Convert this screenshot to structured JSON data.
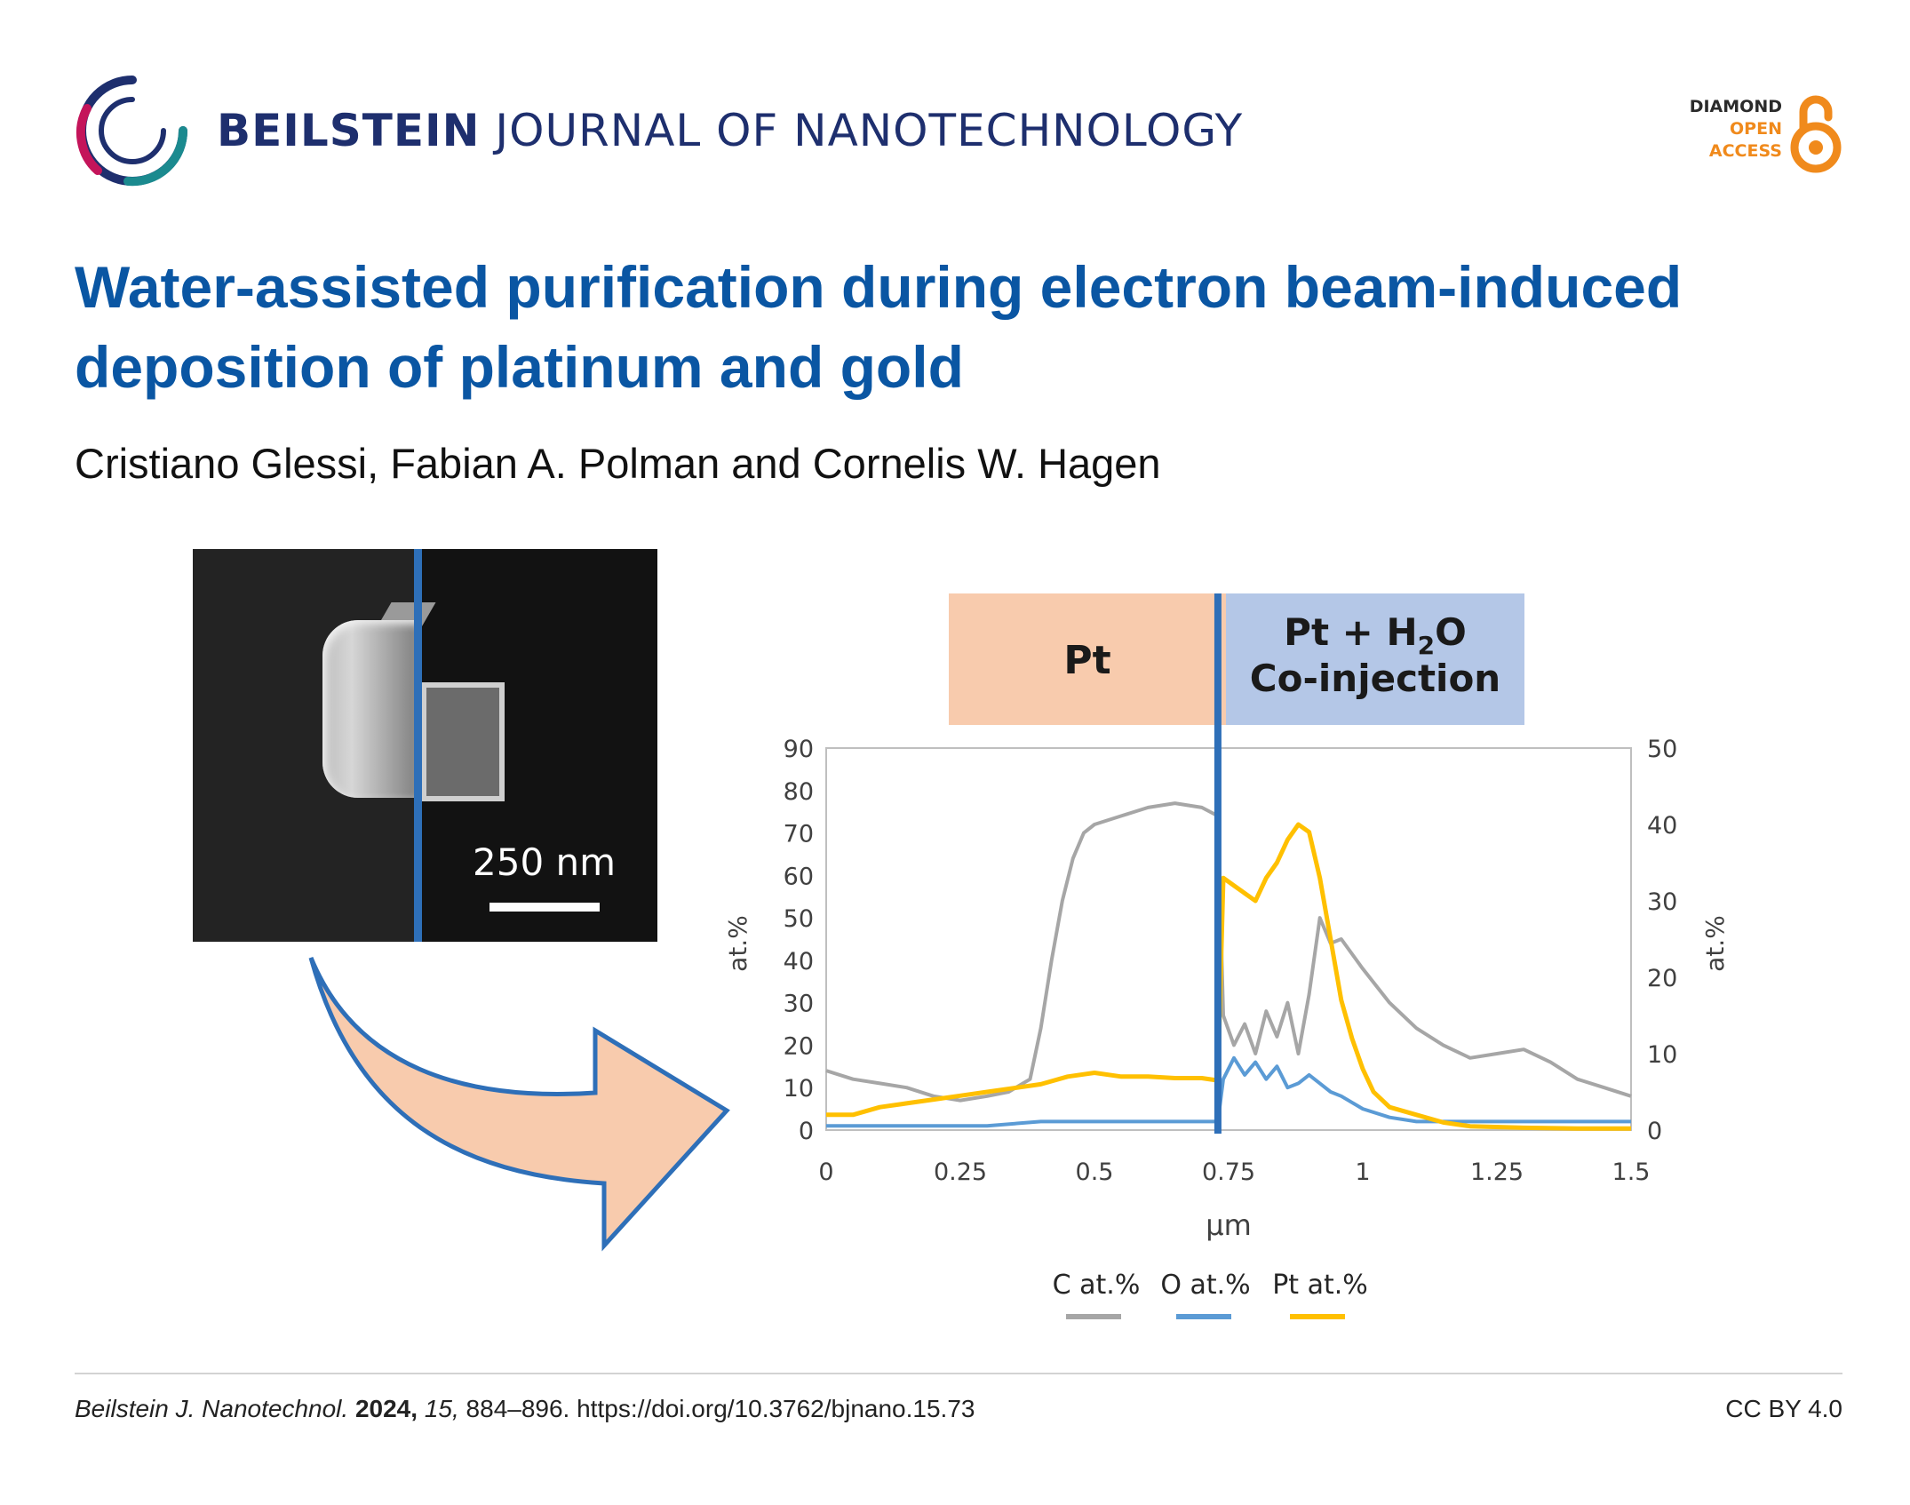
{
  "header": {
    "journal_bold": "BEILSTEIN",
    "journal_rest": "JOURNAL OF NANOTECHNOLOGY",
    "oa_line1": "DIAMOND",
    "oa_line2": "OPEN",
    "oa_line3": "ACCESS"
  },
  "article": {
    "title": "Water-assisted purification during electron beam-induced deposition of platinum and gold",
    "authors": "Cristiano Glessi, Fabian A. Polman and Cornelis W. Hagen"
  },
  "figure": {
    "scale_bar_label": "250 nm"
  },
  "colors": {
    "title": "#0a56a3",
    "journal": "#1e2f6e",
    "oa_orange": "#f08a1c",
    "series_C": "#a6a6a6",
    "series_O": "#5b9bd5",
    "series_Pt": "#ffc000",
    "region_pt": "#f8cbad",
    "region_h2o": "#b4c7e7",
    "divider_blue": "#2e6fb8"
  },
  "chart_data": {
    "type": "line",
    "regions": [
      {
        "label": "Pt",
        "x_range": [
          0,
          0.73
        ]
      },
      {
        "label_line1": "Pt + H",
        "label_sub": "2",
        "label_line1_end": "O",
        "label_line2": "Co-injection",
        "x_range": [
          0.73,
          1.5
        ]
      }
    ],
    "divider_x": 0.73,
    "xlabel": "μm",
    "ylabel_left": "at.%",
    "ylabel_right": "at.%",
    "xlim": [
      0,
      1.5
    ],
    "ylim_left": [
      0,
      90
    ],
    "ylim_right": [
      0,
      50
    ],
    "x_ticks": [
      "0",
      "0.25",
      "0.5",
      "0.75",
      "1",
      "1.25",
      "1.5"
    ],
    "y_ticks_left": [
      "0",
      "10",
      "20",
      "30",
      "40",
      "50",
      "60",
      "70",
      "80",
      "90"
    ],
    "y_ticks_right": [
      "0",
      "10",
      "20",
      "30",
      "40",
      "50"
    ],
    "legend": [
      "C at.%",
      "O at.%",
      "Pt at.%"
    ],
    "series": [
      {
        "name": "C at.%",
        "axis": "left",
        "x": [
          0,
          0.05,
          0.1,
          0.15,
          0.2,
          0.25,
          0.3,
          0.34,
          0.38,
          0.4,
          0.42,
          0.44,
          0.46,
          0.48,
          0.5,
          0.55,
          0.6,
          0.65,
          0.7,
          0.73,
          0.74,
          0.76,
          0.78,
          0.8,
          0.82,
          0.84,
          0.86,
          0.88,
          0.9,
          0.92,
          0.94,
          0.96,
          1.0,
          1.05,
          1.1,
          1.15,
          1.2,
          1.25,
          1.3,
          1.35,
          1.4,
          1.45,
          1.5
        ],
        "y": [
          14,
          12,
          11,
          10,
          8,
          7,
          8,
          9,
          12,
          24,
          40,
          54,
          64,
          70,
          72,
          74,
          76,
          77,
          76,
          74,
          27,
          20,
          25,
          18,
          28,
          22,
          30,
          18,
          32,
          50,
          44,
          45,
          38,
          30,
          24,
          20,
          17,
          18,
          19,
          16,
          12,
          10,
          8
        ]
      },
      {
        "name": "O at.%",
        "axis": "left",
        "x": [
          0,
          0.1,
          0.2,
          0.3,
          0.4,
          0.5,
          0.6,
          0.7,
          0.73,
          0.74,
          0.76,
          0.78,
          0.8,
          0.82,
          0.84,
          0.86,
          0.88,
          0.9,
          0.92,
          0.94,
          0.96,
          1.0,
          1.05,
          1.1,
          1.2,
          1.3,
          1.4,
          1.5
        ],
        "y": [
          1,
          1,
          1,
          1,
          2,
          2,
          2,
          2,
          2,
          12,
          17,
          13,
          16,
          12,
          15,
          10,
          11,
          13,
          11,
          9,
          8,
          5,
          3,
          2,
          2,
          2,
          2,
          2
        ]
      },
      {
        "name": "Pt at.%",
        "axis": "right",
        "x": [
          0,
          0.05,
          0.1,
          0.15,
          0.2,
          0.25,
          0.3,
          0.35,
          0.4,
          0.45,
          0.5,
          0.55,
          0.6,
          0.65,
          0.7,
          0.73,
          0.74,
          0.76,
          0.78,
          0.8,
          0.82,
          0.84,
          0.86,
          0.88,
          0.9,
          0.92,
          0.94,
          0.96,
          0.98,
          1.0,
          1.02,
          1.05,
          1.1,
          1.15,
          1.2,
          1.3,
          1.4,
          1.5
        ],
        "y": [
          2,
          2,
          3,
          3.5,
          4,
          4.5,
          5,
          5.5,
          6,
          7,
          7.5,
          7,
          7,
          6.8,
          6.8,
          6.5,
          33,
          32,
          31,
          30,
          33,
          35,
          38,
          40,
          39,
          33,
          25,
          17,
          12,
          8,
          5,
          3,
          2,
          1,
          0.5,
          0.3,
          0.2,
          0.2
        ]
      }
    ]
  },
  "footer": {
    "journal_abbr": "Beilstein J. Nanotechnol.",
    "year": "2024,",
    "volume": "15,",
    "pages_doi": "884–896. https://doi.org/10.3762/bjnano.15.73",
    "license": "CC BY 4.0"
  }
}
